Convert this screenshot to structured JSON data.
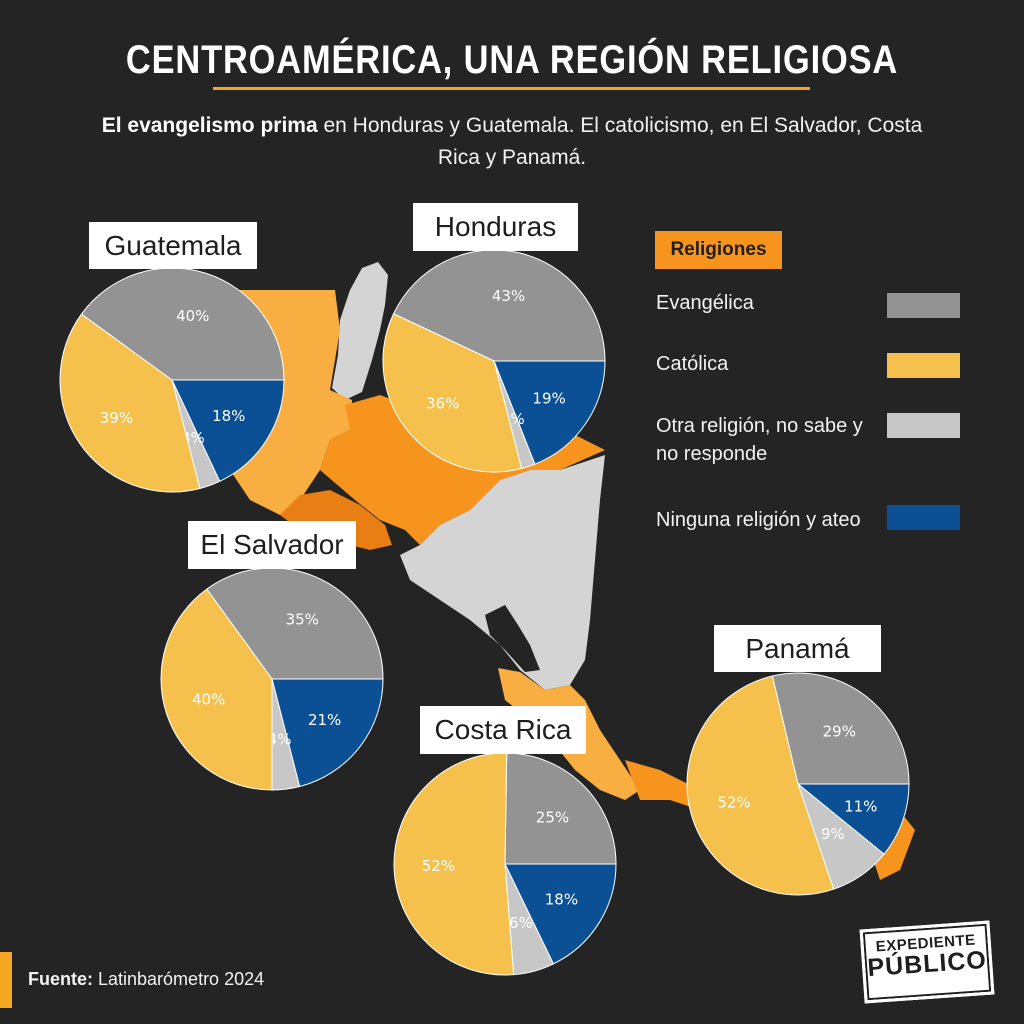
{
  "header": {
    "title": "CENTROAMÉRICA, UNA REGIÓN RELIGIOSA",
    "subtitle_bold": "El evangelismo prima",
    "subtitle_rest": " en Honduras y Guatemala. El catolicismo, en El Salvador, Costa Rica y Panamá."
  },
  "legend": {
    "title": "Religiones",
    "items": [
      {
        "label": "Evangélica",
        "color": "#939393"
      },
      {
        "label": "Católica",
        "color": "#F6C04D"
      },
      {
        "label": "Otra religión, no sabe y no responde",
        "color": "#C7C7C7"
      },
      {
        "label": "Ninguna religión y ateo",
        "color": "#0B4F94"
      }
    ]
  },
  "colors": {
    "background": "#242424",
    "accent": "#F5A623",
    "map_orange": "#F7941D",
    "map_light_orange": "#F9AE42",
    "map_gray": "#D4D4D4"
  },
  "chart_data": [
    {
      "type": "pie",
      "country": "Guatemala",
      "categories": [
        "Evangélica",
        "Católica",
        "Otra religión, no sabe y no responde",
        "Ninguna religión y ateo"
      ],
      "values": [
        40,
        39,
        3,
        18
      ],
      "labels": [
        "40%",
        "39%",
        "3%",
        "18%"
      ]
    },
    {
      "type": "pie",
      "country": "Honduras",
      "categories": [
        "Evangélica",
        "Católica",
        "Otra religión, no sabe y no responde",
        "Ninguna religión y ateo"
      ],
      "values": [
        43,
        36,
        2,
        19
      ],
      "labels": [
        "43%",
        "36%",
        "2%",
        "19%"
      ]
    },
    {
      "type": "pie",
      "country": "El Salvador",
      "categories": [
        "Evangélica",
        "Católica",
        "Otra religión, no sabe y no responde",
        "Ninguna religión y ateo"
      ],
      "values": [
        35,
        40,
        4,
        21
      ],
      "labels": [
        "35%",
        "40%",
        "4%",
        "21%"
      ]
    },
    {
      "type": "pie",
      "country": "Costa Rica",
      "categories": [
        "Evangélica",
        "Católica",
        "Otra religión, no sabe y no responde",
        "Ninguna religión y ateo"
      ],
      "values": [
        25,
        52,
        6,
        18
      ],
      "labels": [
        "25%",
        "52%",
        "6%",
        "18%"
      ]
    },
    {
      "type": "pie",
      "country": "Panamá",
      "categories": [
        "Evangélica",
        "Católica",
        "Otra religión, no sabe y no responde",
        "Ninguna religión y ateo"
      ],
      "values": [
        29,
        52,
        9,
        11
      ],
      "labels": [
        "29%",
        "52%",
        "9%",
        "11%"
      ]
    }
  ],
  "source": {
    "label": "Fuente:",
    "value": " Latinbarómetro 2024"
  },
  "logo": {
    "line1": "EXPEDIENTE",
    "line2": "PÚBLICO"
  }
}
